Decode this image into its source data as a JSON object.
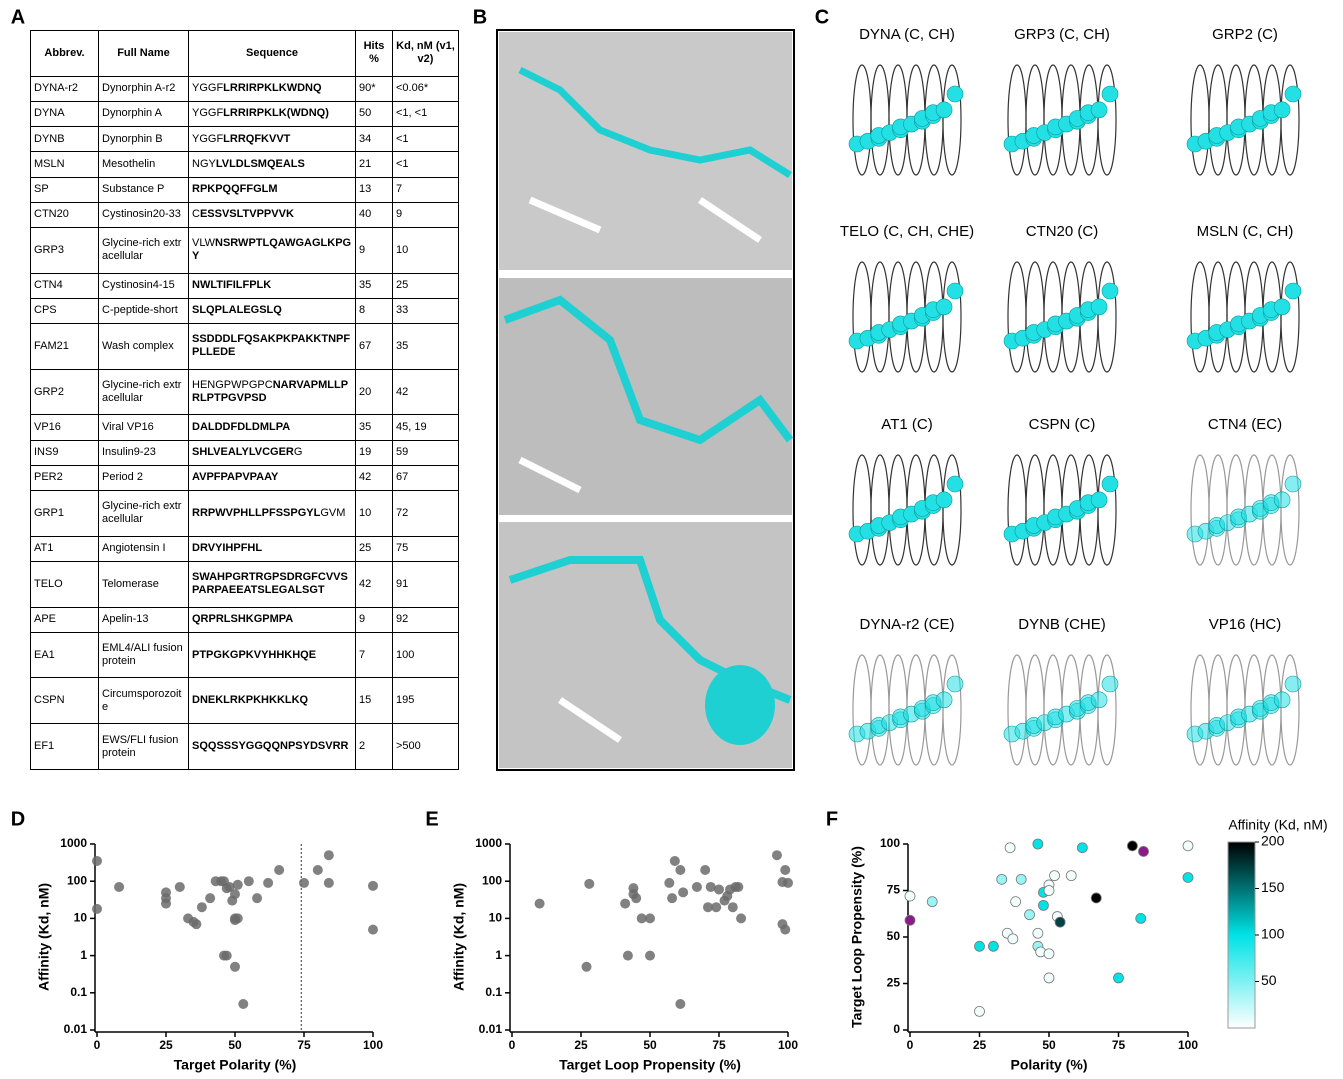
{
  "panel_labels": [
    "A",
    "B",
    "C",
    "D",
    "E",
    "F"
  ],
  "table": {
    "columns": [
      "Abbrev.",
      "Full Name",
      "Sequence",
      "Hits %",
      "Kd, nM (v1, v2)"
    ],
    "rows": [
      [
        "DYNA-r2",
        "Dynorphin A-r2",
        [
          {
            "text": "YGGF"
          },
          {
            "text": "LRRIRPKLKWDNQ",
            "bold": true
          }
        ],
        "90*",
        "<0.06*"
      ],
      [
        "DYNA",
        "Dynorphin A",
        [
          {
            "text": "YGGF"
          },
          {
            "text": "LRRIRPKLK(WDNQ)",
            "bold": true
          }
        ],
        "50",
        "<1, <1"
      ],
      [
        "DYNB",
        "Dynorphin B",
        [
          {
            "text": "YGGF"
          },
          {
            "text": "LRRQFKVVT",
            "bold": true
          }
        ],
        "34",
        "<1"
      ],
      [
        "MSLN",
        "Mesothelin",
        [
          {
            "text": "NGY"
          },
          {
            "text": "LVLDLSMQEALS",
            "bold": true
          }
        ],
        "21",
        "<1"
      ],
      [
        "SP",
        "Substance P",
        [
          {
            "text": "RPKPQQFFGLM",
            "bold": true
          }
        ],
        "13",
        "7"
      ],
      [
        "CTN20",
        "Cystinosin20-33",
        [
          {
            "text": "C"
          },
          {
            "text": "ESSVSLTVPPVVK",
            "bold": true
          }
        ],
        "40",
        "9"
      ],
      [
        "GRP3",
        "Glycine-rich extracellular",
        [
          {
            "text": "VLW"
          },
          {
            "text": "NSRWPTLQAWGAGLKPGY",
            "bold": true
          }
        ],
        "9",
        "10"
      ],
      [
        "CTN4",
        "Cystinosin4-15",
        [
          {
            "text": "NWLTIFILFPLK",
            "bold": true
          }
        ],
        "35",
        "25"
      ],
      [
        "CPS",
        "C-peptide-short",
        [
          {
            "text": "SLQPLALEGSLQ",
            "bold": true
          }
        ],
        "8",
        "33"
      ],
      [
        "FAM21",
        "Wash complex",
        [
          {
            "text": "SSDDDLFQSAKPKPAKKTNPFPLLEDE",
            "bold": true
          }
        ],
        "67",
        "35"
      ],
      [
        "GRP2",
        "Glycine-rich extracellular",
        [
          {
            "text": "HENGPWPGPC"
          },
          {
            "text": "NARVAPMLLPRLPTPGVPSD",
            "bold": true
          }
        ],
        "20",
        "42"
      ],
      [
        "VP16",
        "Viral VP16",
        [
          {
            "text": "DALDDFDLDMLPA",
            "bold": true
          }
        ],
        "35",
        "45, 19"
      ],
      [
        "INS9",
        "Insulin9-23",
        [
          {
            "text": "SHLVEALYLVCGER",
            "bold": true
          },
          {
            "text": "G"
          }
        ],
        "19",
        "59"
      ],
      [
        "PER2",
        "Period 2",
        [
          {
            "text": "AVPFPAPVPAAY",
            "bold": true
          }
        ],
        "42",
        "67"
      ],
      [
        "GRP1",
        "Glycine-rich extracellular",
        [
          {
            "text": "RRPWVPHLLPFSSPGYL",
            "bold": true
          },
          {
            "text": "GVM"
          }
        ],
        "10",
        "72"
      ],
      [
        "AT1",
        "Angiotensin I",
        [
          {
            "text": "DRVYIHPFHL",
            "bold": true
          }
        ],
        "25",
        "75"
      ],
      [
        "TELO",
        "Telomerase",
        [
          {
            "text": "SWAHPGRTRGPSDRGFCVVSPARPAEEATSLEGALSGT",
            "bold": true
          }
        ],
        "42",
        "91"
      ],
      [
        "APE",
        "Apelin-13",
        [
          {
            "text": "QRPRLSHKGPMPA",
            "bold": true
          }
        ],
        "9",
        "92"
      ],
      [
        "EA1",
        "EML4/ALI fusion protein",
        [
          {
            "text": "PTPGKGPKVYHHKHQE",
            "bold": true
          }
        ],
        "7",
        "100"
      ],
      [
        "CSPN",
        "Circumsporozoite",
        [
          {
            "text": "DNEKLRKPKHKKLKQ",
            "bold": true
          }
        ],
        "15",
        "195"
      ],
      [
        "EF1",
        "EWS/FLI fusion protein",
        [
          {
            "text": "SQQSSSYGGQQNPSYDSVRR",
            "bold": true
          }
        ],
        "2",
        ">500"
      ]
    ]
  },
  "structures": [
    "DYNA (C, CH)",
    "GRP3 (C, CH)",
    "GRP2 (C)",
    "TELO (C, CH, CHE)",
    "CTN20 (C)",
    "MSLN (C, CH)",
    "AT1 (C)",
    "CSPN (C)",
    "CTN4 (EC)",
    "DYNA-r2 (CE)",
    "DYNB (CHE)",
    "VP16 (HC)"
  ],
  "chart_data": [
    {
      "type": "scatter",
      "xlabel": "Target Polarity (%)",
      "ylabel": "Affinity (Kd, nM)",
      "log_y": true,
      "color": "#6b6b6b",
      "x": [
        0,
        0,
        8,
        25,
        25,
        25,
        30,
        33,
        35,
        36,
        38,
        41,
        43,
        45,
        46,
        47,
        46,
        47,
        48,
        49,
        50,
        50,
        50,
        50,
        51,
        51,
        53,
        55,
        58,
        62,
        66,
        75,
        80,
        84,
        84,
        100,
        100
      ],
      "values": [
        350,
        18,
        70,
        50,
        35,
        25,
        70,
        10,
        8,
        7,
        20,
        35,
        100,
        100,
        1,
        1,
        100,
        65,
        70,
        30,
        45,
        10,
        9,
        0.5,
        80,
        10,
        0.05,
        100,
        35,
        90,
        200,
        90,
        200,
        500,
        90,
        75,
        5
      ],
      "xlim": [
        0,
        100
      ],
      "xticks": [
        0,
        25,
        50,
        75,
        100
      ],
      "ylim": [
        0.01,
        1000
      ],
      "yticks": [
        0.01,
        0.1,
        1,
        10,
        100,
        1000
      ],
      "vline": 74
    },
    {
      "type": "scatter",
      "xlabel": "Target Loop Propensity (%)",
      "ylabel": "Affinity (Kd, nM)",
      "log_y": true,
      "color": "#6b6b6b",
      "x": [
        10,
        27,
        28,
        41,
        42,
        44,
        44,
        45,
        47,
        50,
        50,
        57,
        58,
        59,
        61,
        61,
        62,
        67,
        70,
        71,
        72,
        74,
        75,
        77,
        78,
        79,
        80,
        81,
        82,
        83,
        96,
        98,
        98,
        99,
        99,
        100
      ],
      "values": [
        25,
        0.5,
        85,
        25,
        1,
        65,
        45,
        35,
        10,
        1,
        10,
        90,
        35,
        350,
        0.05,
        200,
        50,
        70,
        200,
        20,
        70,
        20,
        60,
        30,
        40,
        60,
        20,
        70,
        70,
        10,
        500,
        95,
        7,
        200,
        5,
        90
      ],
      "xlim": [
        0,
        100
      ],
      "xticks": [
        0,
        25,
        50,
        75,
        100
      ],
      "ylim": [
        0.01,
        1000
      ],
      "yticks": [
        0.01,
        0.1,
        1,
        10,
        100,
        1000
      ]
    },
    {
      "type": "scatter",
      "xlabel": "Polarity (%)",
      "ylabel": "Target Loop Propensity (%)",
      "colorbar_label": "Affinity (Kd, nM)",
      "x": [
        0,
        0,
        8,
        25,
        25,
        30,
        33,
        35,
        36,
        37,
        38,
        40,
        43,
        46,
        46,
        46,
        47,
        48,
        48,
        50,
        50,
        50,
        50,
        52,
        53,
        54,
        58,
        62,
        67,
        75,
        80,
        83,
        84,
        100,
        100
      ],
      "values": [
        72,
        59,
        69,
        45,
        10,
        45,
        81,
        52,
        98,
        49,
        69,
        81,
        62,
        100,
        52,
        45,
        42,
        74,
        67,
        78,
        75,
        41,
        28,
        83,
        61,
        58,
        83,
        98,
        71,
        28,
        99,
        60,
        96,
        99,
        82
      ],
      "c": [
        5,
        500,
        40,
        100,
        5,
        100,
        40,
        5,
        5,
        5,
        5,
        40,
        40,
        100,
        5,
        40,
        5,
        100,
        100,
        5,
        5,
        5,
        5,
        5,
        5,
        170,
        5,
        100,
        200,
        100,
        200,
        100,
        500,
        5,
        100
      ],
      "clim": [
        0,
        200
      ],
      "cticks": [
        50,
        100,
        150,
        200
      ],
      "colormap": [
        "#ffffff",
        "#00e3e6",
        "#000000"
      ],
      "over_color": "#8a1b88",
      "xlim": [
        0,
        100
      ],
      "xticks": [
        0,
        25,
        50,
        75,
        100
      ],
      "ylim": [
        0,
        100
      ],
      "yticks": [
        0,
        25,
        50,
        75,
        100
      ]
    }
  ]
}
